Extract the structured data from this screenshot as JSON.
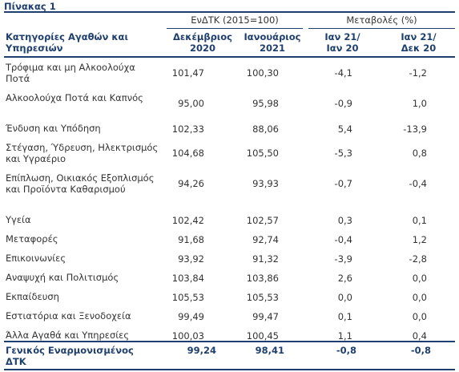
{
  "title": "Πίνακας 1",
  "group_headers": {
    "index": "ΕνΔΤΚ (2015=100)",
    "changes": "Μεταβολές (%)"
  },
  "columns": {
    "category": "Κατηγορίες Αγαθών και Υπηρεσιών",
    "dec2020": [
      "Δεκέμβριος",
      "2020"
    ],
    "jan2021": [
      "Ιανουάριος",
      "2021"
    ],
    "yoy": [
      "Ιαν 21/",
      "Ιαν 20"
    ],
    "mom": [
      "Ιαν 21/",
      "Δεκ 20"
    ]
  },
  "rows": [
    {
      "category": "Τρόφιμα και μη Αλκοολούχα Ποτά",
      "dec2020": "101,47",
      "jan2021": "100,30",
      "yoy": "-4,1",
      "mom": "-1,2"
    },
    {
      "category": "Αλκοολούχα Ποτά και Καπνός",
      "dec2020": "95,00",
      "jan2021": "95,98",
      "yoy": "-0,9",
      "mom": "1,0"
    },
    {
      "category": "Ένδυση και Υπόδηση",
      "dec2020": "102,33",
      "jan2021": "88,06",
      "yoy": "5,4",
      "mom": "-13,9"
    },
    {
      "category": "Στέγαση, Ύδρευση, Ηλεκτρισμός και Υγραέριο",
      "dec2020": "104,68",
      "jan2021": "105,50",
      "yoy": "-5,3",
      "mom": "0,8"
    },
    {
      "category": "Επίπλωση, Οικιακός Εξοπλισμός και Προϊόντα Καθαρισμού",
      "dec2020": "94,26",
      "jan2021": "93,93",
      "yoy": "-0,7",
      "mom": "-0,4"
    },
    {
      "category": "Υγεία",
      "dec2020": "102,42",
      "jan2021": "102,57",
      "yoy": "0,3",
      "mom": "0,1"
    },
    {
      "category": "Μεταφορές",
      "dec2020": "91,68",
      "jan2021": "92,74",
      "yoy": "-0,4",
      "mom": "1,2"
    },
    {
      "category": "Επικοινωνίες",
      "dec2020": "93,92",
      "jan2021": "91,32",
      "yoy": "-3,9",
      "mom": "-2,8"
    },
    {
      "category": "Αναψυχή και Πολιτισμός",
      "dec2020": "103,84",
      "jan2021": "103,86",
      "yoy": "2,6",
      "mom": "0,0"
    },
    {
      "category": "Εκπαίδευση",
      "dec2020": "105,53",
      "jan2021": "105,53",
      "yoy": "0,0",
      "mom": "0,0"
    },
    {
      "category": "Εστιατόρια και Ξενοδοχεία",
      "dec2020": "99,49",
      "jan2021": "99,47",
      "yoy": "0,1",
      "mom": "0,0"
    },
    {
      "category": "Άλλα Αγαθά και Υπηρεσίες",
      "dec2020": "100,03",
      "jan2021": "100,45",
      "yoy": "1,1",
      "mom": "0,4"
    }
  ],
  "total": {
    "category": "Γενικός Εναρμονισμένος ΔΤΚ",
    "dec2020": "99,24",
    "jan2021": "98,41",
    "yoy": "-0,8",
    "mom": "-0,8"
  },
  "colors": {
    "header_text": "#1f3f6e",
    "body_text": "#333333",
    "rules": "#1f3f6e"
  }
}
